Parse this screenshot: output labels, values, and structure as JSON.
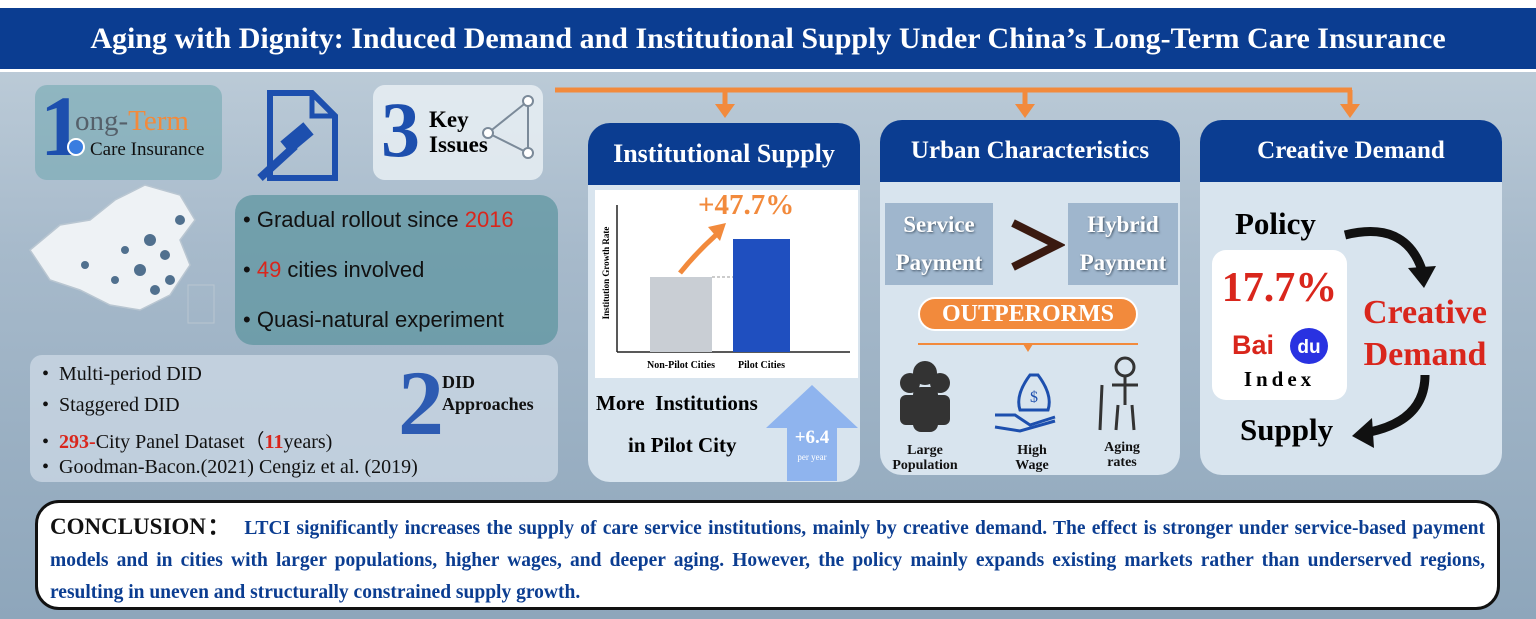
{
  "title": "Aging with Dignity: Induced Demand and Institutional Supply Under China’s Long-Term Care Insurance",
  "logo": {
    "number": "1",
    "text_a": "ong-",
    "text_b": "Term",
    "subtitle": "Care Insurance"
  },
  "key_issues": {
    "number": "3",
    "line1": "Key",
    "line2": "Issues"
  },
  "facts": [
    {
      "pre": "Gradual rollout since ",
      "hl": "2016"
    },
    {
      "hl": "49",
      "post": " cities involved"
    },
    {
      "pre": "Quasi-natural experiment"
    }
  ],
  "methods": {
    "items": [
      {
        "pre": "Multi-period DID"
      },
      {
        "pre": "Staggered DID"
      },
      {
        "hl": "293-",
        "mid": "City Panel Dataset（",
        "hl2": "11",
        "post": "years)"
      },
      {
        "pre": "Goodman-Bacon.(2021) Cengiz et al. (2019)"
      }
    ],
    "badge": {
      "number": "2",
      "line1": "DID",
      "line2": "Approaches"
    }
  },
  "supply": {
    "heading": "Institutional Supply",
    "growth": "+47.7%",
    "axis_label": "Institution Growth Rate",
    "categories": [
      "Non-Pilot Cities",
      "Pilot Cities"
    ],
    "note_line1": "More  Institutions",
    "note_line2": "in Pilot City",
    "increase": "+6.4",
    "increase_unit": "per year"
  },
  "urban": {
    "heading": "Urban Characteristics",
    "left": [
      "Service",
      "Payment"
    ],
    "right": [
      "Hybrid",
      "Payment"
    ],
    "verdict": "OUTPERORMS",
    "factors": [
      [
        "Large",
        "Population"
      ],
      [
        "High",
        "Wage"
      ],
      [
        "Aging",
        "rates"
      ]
    ]
  },
  "demand": {
    "heading": "Creative Demand",
    "top": "Policy",
    "share": "17.7%",
    "brand_a": "Bai",
    "brand_b": "du",
    "index": "Index",
    "result": [
      "Creative",
      "Demand"
    ],
    "bottom": "Supply"
  },
  "conclusion": {
    "label": "CONCLUSION：",
    "text": "LTCI significantly increases the supply of  care service institutions, mainly by creative demand. The effect is stronger under service-based payment models and in cities with larger populations, higher wages, and deeper aging. However, the policy mainly expands existing markets rather than underserved regions, resulting in uneven and structurally constrained supply growth."
  }
}
